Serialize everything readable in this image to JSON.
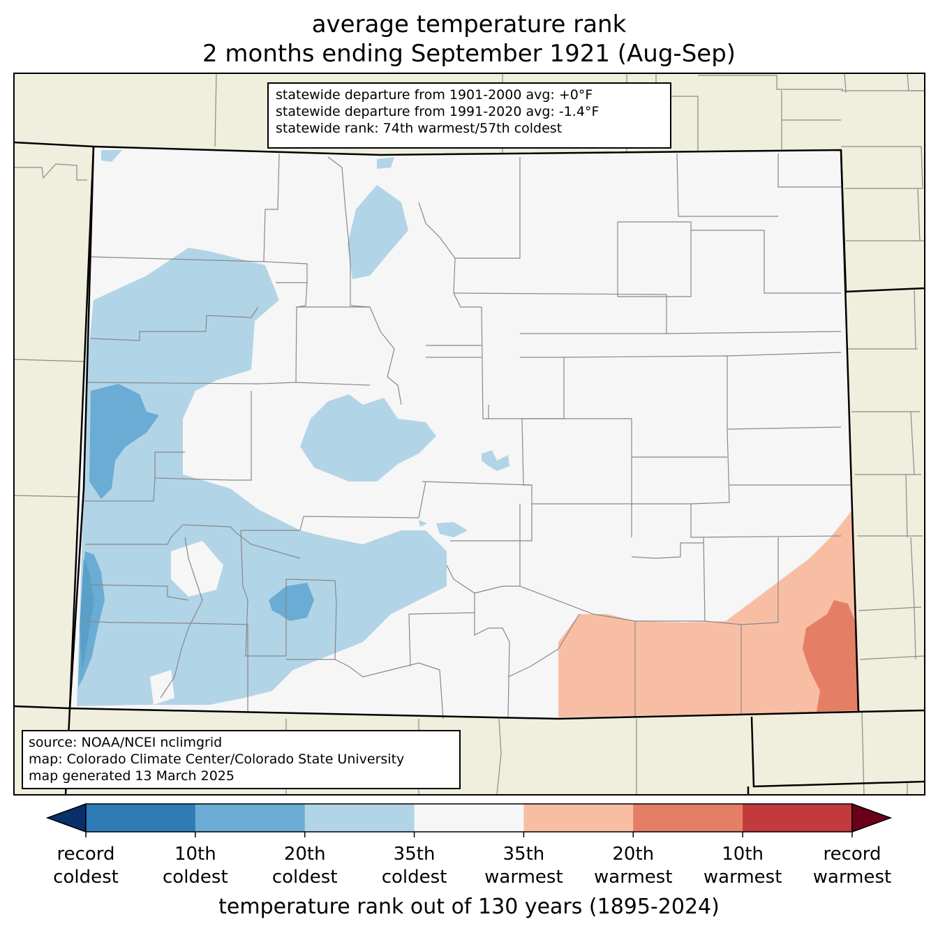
{
  "title": {
    "line1": "average temperature rank",
    "line2": "2 months ending September 1921 (Aug-Sep)"
  },
  "stats": {
    "line1": "statewide departure from 1901-2000 avg: +0°F",
    "line2": "statewide departure from 1991-2020 avg: -1.4°F",
    "line3": "statewide rank: 74th warmest/57th coldest"
  },
  "source": {
    "line1": "source: NOAA/NCEI nclimgrid",
    "line2": "map: Colorado Climate Center/Colorado State University",
    "line3": "map generated 13 March 2025"
  },
  "colors": {
    "land": "#f0eedc",
    "state_fill": "#f6f6f6",
    "record_coldest": "#08306b",
    "c10": "#2f7bb6",
    "c20": "#6aacd3",
    "c35": "#b2d4e7",
    "neutral": "#f6f6f6",
    "w35": "#f8bea4",
    "w20": "#e47f65",
    "w10": "#c33a3d",
    "record_warmest": "#6b0018"
  },
  "colorbar": {
    "segments": [
      "#2f7bb6",
      "#6aacd3",
      "#b2d4e7",
      "#f6f6f6",
      "#f8bea4",
      "#e47f65",
      "#c33a3d"
    ],
    "left_arrow_color": "#08306b",
    "right_arrow_color": "#6b0018",
    "ticks": [
      {
        "line1": "record",
        "line2": "coldest"
      },
      {
        "line1": "10th",
        "line2": "coldest"
      },
      {
        "line1": "20th",
        "line2": "coldest"
      },
      {
        "line1": "35th",
        "line2": "coldest"
      },
      {
        "line1": "35th",
        "line2": "warmest"
      },
      {
        "line1": "20th",
        "line2": "warmest"
      },
      {
        "line1": "10th",
        "line2": "warmest"
      },
      {
        "line1": "record",
        "line2": "warmest"
      }
    ],
    "title": "temperature rank out of 130 years (1895-2024)"
  }
}
